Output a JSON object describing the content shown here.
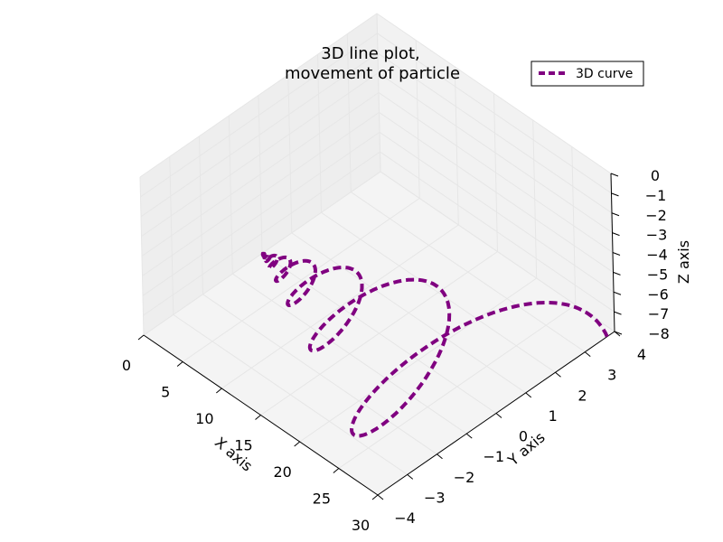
{
  "chart_data": {
    "type": "line",
    "title_lines": [
      "3D line plot,",
      "movement of particle"
    ],
    "xlabel": "X axis",
    "ylabel": "Y axis",
    "zlabel": "Z axis",
    "xlim": [
      0,
      30
    ],
    "ylim": [
      -4,
      4
    ],
    "zlim": [
      -8,
      0
    ],
    "x_ticks": [
      "0",
      "5",
      "10",
      "15",
      "20",
      "25",
      "30"
    ],
    "y_ticks": [
      "−4",
      "−3",
      "−2",
      "−1",
      "0",
      "1",
      "2",
      "3",
      "4"
    ],
    "z_ticks": [
      "0",
      "−1",
      "−2",
      "−3",
      "−4",
      "−5",
      "−6",
      "−7",
      "−8"
    ],
    "grid": true,
    "legend": {
      "position": "top-right",
      "entries": [
        "3D curve"
      ]
    },
    "series": [
      {
        "name": "3D curve",
        "color": "#800080",
        "line_style": "dashed",
        "equation": "x = 30*exp(-t/10), y = x*cos(t)/8, z = -8 + x*sin(t)/8",
        "t_range": [
          0,
          60
        ]
      }
    ]
  },
  "colors": {
    "curve": "#800080",
    "pane": "#f2f2f2",
    "grid": "#e6e6e6"
  }
}
